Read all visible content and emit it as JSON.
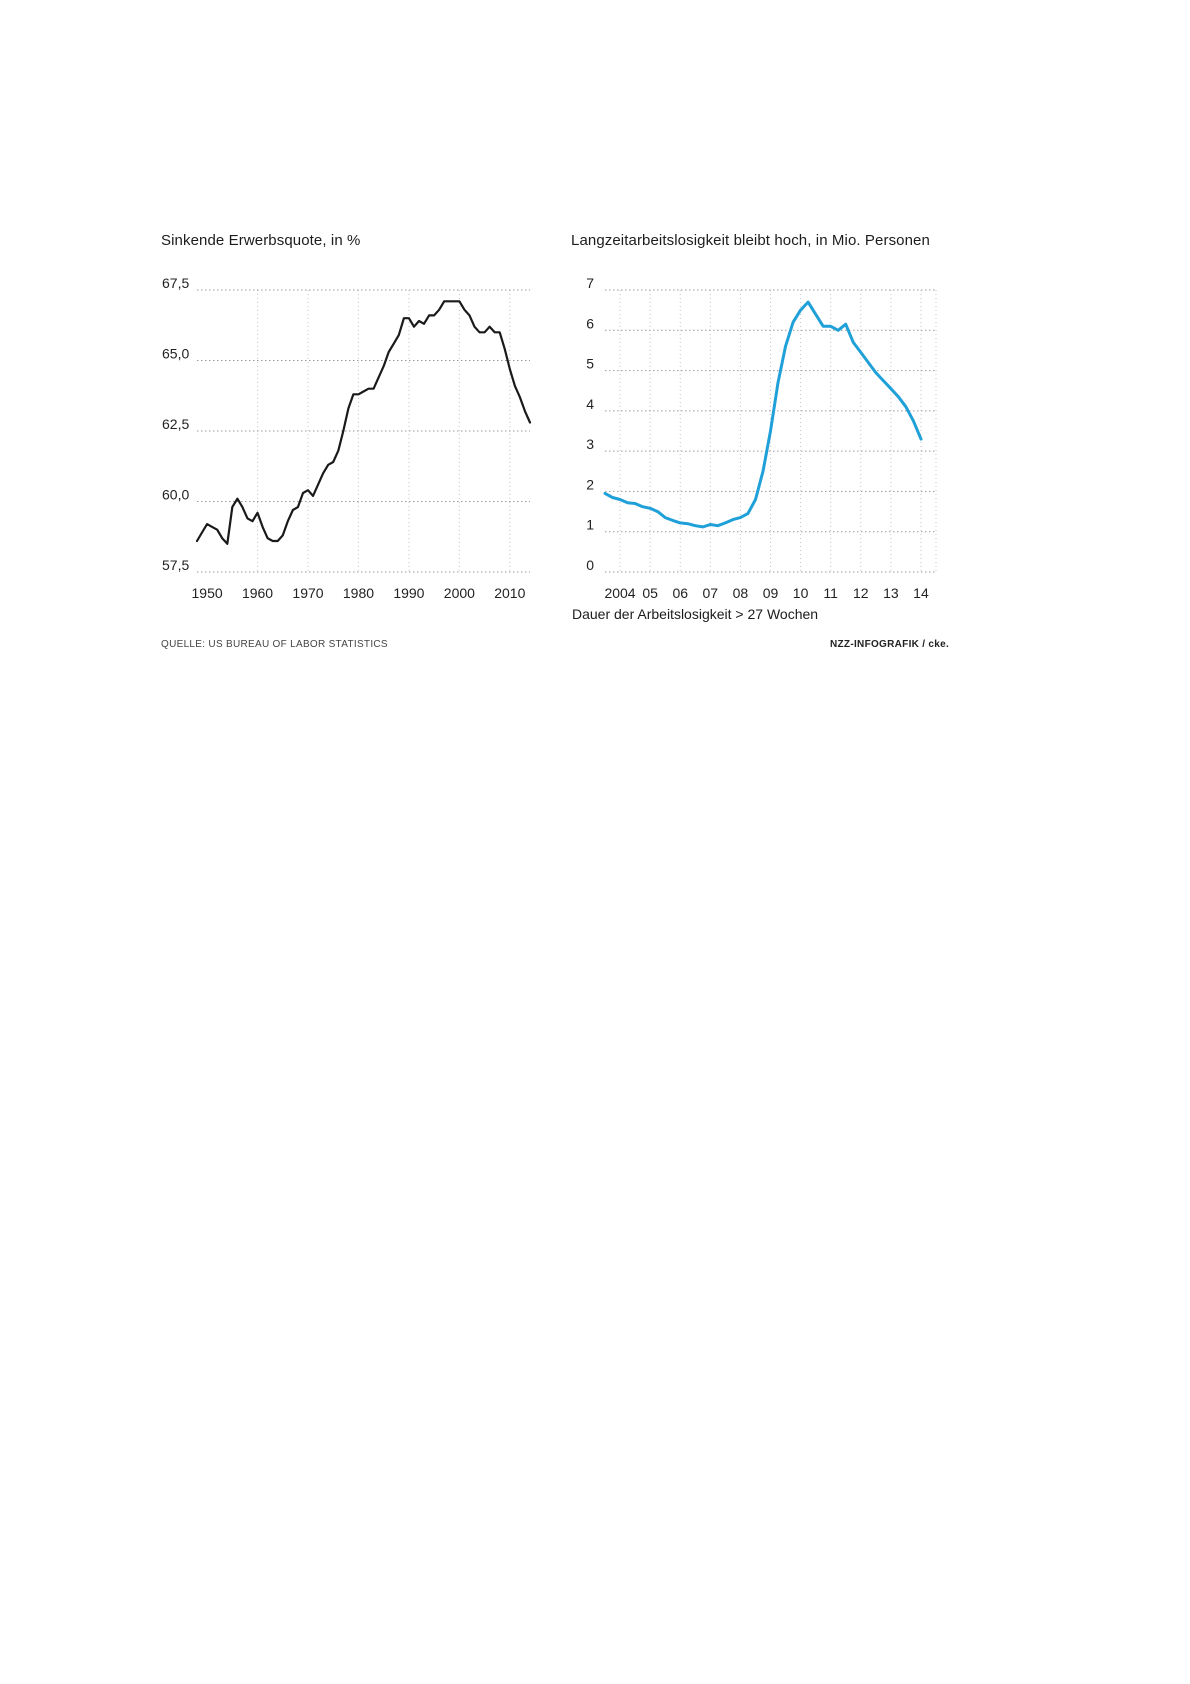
{
  "chart_data": [
    {
      "type": "line",
      "title": "Sinkende Erwerbsquote, in %",
      "xlabel": "",
      "ylabel": "",
      "xlim": [
        1948,
        2014
      ],
      "ylim": [
        57.5,
        67.5
      ],
      "y_ticks": [
        57.5,
        60.0,
        62.5,
        65.0,
        67.5
      ],
      "y_tick_labels": [
        "57,5",
        "60,0",
        "62,5",
        "65,0",
        "67,5"
      ],
      "x_ticks": [
        1950,
        1960,
        1970,
        1980,
        1990,
        2000,
        2010
      ],
      "x_tick_labels": [
        "1950",
        "1960",
        "1970",
        "1980",
        "1990",
        "2000",
        "2010"
      ],
      "grid": true,
      "line_color": "#1a1a1a",
      "series": [
        {
          "x": [
            1948,
            1949,
            1950,
            1951,
            1952,
            1953,
            1954,
            1955,
            1956,
            1957,
            1958,
            1959,
            1960,
            1961,
            1962,
            1963,
            1964,
            1965,
            1966,
            1967,
            1968,
            1969,
            1970,
            1971,
            1972,
            1973,
            1974,
            1975,
            1976,
            1977,
            1978,
            1979,
            1980,
            1981,
            1982,
            1983,
            1984,
            1985,
            1986,
            1987,
            1988,
            1989,
            1990,
            1991,
            1992,
            1993,
            1994,
            1995,
            1996,
            1997,
            1998,
            1999,
            2000,
            2001,
            2002,
            2003,
            2004,
            2005,
            2006,
            2007,
            2008,
            2009,
            2010,
            2011,
            2012,
            2013,
            2014
          ],
          "y": [
            58.6,
            58.9,
            59.2,
            59.1,
            59.0,
            58.7,
            58.5,
            59.8,
            60.1,
            59.8,
            59.4,
            59.3,
            59.6,
            59.1,
            58.7,
            58.6,
            58.6,
            58.8,
            59.3,
            59.7,
            59.8,
            60.3,
            60.4,
            60.2,
            60.6,
            61.0,
            61.3,
            61.4,
            61.8,
            62.5,
            63.3,
            63.8,
            63.8,
            63.9,
            64.0,
            64.0,
            64.4,
            64.8,
            65.3,
            65.6,
            65.9,
            66.5,
            66.5,
            66.2,
            66.4,
            66.3,
            66.6,
            66.6,
            66.8,
            67.1,
            67.1,
            67.1,
            67.1,
            66.8,
            66.6,
            66.2,
            66.0,
            66.0,
            66.2,
            66.0,
            66.0,
            65.4,
            64.7,
            64.1,
            63.7,
            63.2,
            62.8
          ]
        }
      ]
    },
    {
      "type": "line",
      "title": "Langzeitarbeitslosigkeit bleibt hoch, in Mio. Personen",
      "xlabel": "Dauer der Arbeitslosigkeit > 27 Wochen",
      "ylabel": "",
      "xlim": [
        2003.5,
        2014.5
      ],
      "ylim": [
        0,
        7
      ],
      "y_ticks": [
        0,
        1,
        2,
        3,
        4,
        5,
        6,
        7
      ],
      "y_tick_labels": [
        "0",
        "1",
        "2",
        "3",
        "4",
        "5",
        "6",
        "7"
      ],
      "x_ticks": [
        2004,
        2005,
        2006,
        2007,
        2008,
        2009,
        2010,
        2011,
        2012,
        2013,
        2014
      ],
      "x_tick_labels": [
        "2004",
        "05",
        "06",
        "07",
        "08",
        "09",
        "10",
        "11",
        "12",
        "13",
        "14"
      ],
      "grid": true,
      "line_color": "#1fa0d8",
      "series": [
        {
          "x": [
            2003.5,
            2003.75,
            2004.0,
            2004.25,
            2004.5,
            2004.75,
            2005.0,
            2005.25,
            2005.5,
            2005.75,
            2006.0,
            2006.25,
            2006.5,
            2006.75,
            2007.0,
            2007.25,
            2007.5,
            2007.75,
            2008.0,
            2008.25,
            2008.5,
            2008.75,
            2009.0,
            2009.25,
            2009.5,
            2009.75,
            2010.0,
            2010.25,
            2010.5,
            2010.75,
            2011.0,
            2011.25,
            2011.5,
            2011.75,
            2012.0,
            2012.25,
            2012.5,
            2012.75,
            2013.0,
            2013.25,
            2013.5,
            2013.75,
            2014.0
          ],
          "y": [
            1.95,
            1.85,
            1.8,
            1.72,
            1.7,
            1.62,
            1.58,
            1.5,
            1.35,
            1.28,
            1.22,
            1.2,
            1.15,
            1.12,
            1.18,
            1.15,
            1.22,
            1.3,
            1.35,
            1.45,
            1.8,
            2.5,
            3.5,
            4.7,
            5.6,
            6.2,
            6.5,
            6.7,
            6.4,
            6.1,
            6.1,
            6.0,
            6.15,
            5.7,
            5.45,
            5.2,
            4.95,
            4.75,
            4.55,
            4.35,
            4.1,
            3.75,
            3.3
          ]
        }
      ]
    }
  ],
  "source": "QUELLE: US BUREAU OF LABOR STATISTICS",
  "credit": "NZZ-INFOGRAFIK / cke."
}
